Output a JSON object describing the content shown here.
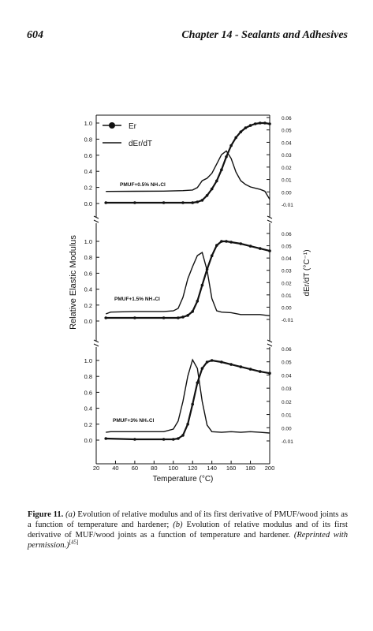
{
  "header": {
    "page_number": "604",
    "running_title": "Chapter 14 - Sealants and Adhesives"
  },
  "figure": {
    "left_axis_label": "Relative Elastic Modulus",
    "right_axis_label": "dEr/dT (°C⁻¹)",
    "x_axis_label": "Temperature (°C)",
    "legend": {
      "series_er": "Er",
      "series_der": "dEr/dT"
    }
  },
  "caption": {
    "label": "Figure 11.",
    "part_a_marker": "(a)",
    "part_a_text": "Evolution of relative modulus and of its first derivative of PMUF/wood joints as a function of temperature and hardener;",
    "part_b_marker": "(b)",
    "part_b_text": "Evolution of relative modulus and of its first derivative of MUF/wood joints as a function of temperature and hardener.",
    "reprint_note": "(Reprinted with permission.)",
    "reference": "[45]"
  },
  "chart_data": {
    "type": "line",
    "x_ticks": [
      20,
      40,
      60,
      80,
      100,
      120,
      140,
      160,
      180,
      200
    ],
    "xlim": [
      20,
      200
    ],
    "y_left_ticks": [
      "0.0",
      "0.2",
      "0.4",
      "0.6",
      "0.8",
      "1.0"
    ],
    "y_left_lim": [
      0,
      1.0
    ],
    "y_right_ticks": [
      "-0.01",
      "0.00",
      "0.01",
      "0.02",
      "0.03",
      "0.04",
      "0.05",
      "0.06"
    ],
    "y_right_lim": [
      -0.01,
      0.06
    ],
    "legend_position": "top-left",
    "panels": [
      {
        "annotation": "PMUF+0.5% NH₄Cl",
        "er": {
          "x": [
            30,
            60,
            90,
            110,
            120,
            125,
            130,
            135,
            140,
            145,
            150,
            155,
            160,
            165,
            170,
            175,
            180,
            185,
            190,
            195,
            200
          ],
          "y": [
            0.01,
            0.01,
            0.01,
            0.01,
            0.01,
            0.02,
            0.04,
            0.1,
            0.18,
            0.28,
            0.42,
            0.58,
            0.72,
            0.82,
            0.89,
            0.94,
            0.97,
            0.99,
            1.0,
            1.0,
            0.99
          ]
        },
        "der": {
          "x": [
            30,
            60,
            90,
            110,
            120,
            125,
            130,
            135,
            140,
            145,
            150,
            155,
            160,
            165,
            170,
            175,
            180,
            185,
            190,
            195,
            200
          ],
          "y": [
            0.0004,
            0.0005,
            0.0006,
            0.001,
            0.0015,
            0.0035,
            0.009,
            0.011,
            0.015,
            0.0225,
            0.03,
            0.033,
            0.027,
            0.016,
            0.009,
            0.006,
            0.004,
            0.003,
            0.002,
            0.0005,
            -0.006
          ]
        }
      },
      {
        "annotation": "PMUF+1.5% NH₄Cl",
        "er": {
          "x": [
            30,
            60,
            90,
            105,
            110,
            115,
            120,
            125,
            130,
            135,
            140,
            145,
            150,
            155,
            160,
            170,
            180,
            190,
            200
          ],
          "y": [
            0.04,
            0.04,
            0.04,
            0.04,
            0.05,
            0.07,
            0.12,
            0.25,
            0.45,
            0.65,
            0.82,
            0.95,
            1.0,
            1.0,
            0.99,
            0.97,
            0.94,
            0.91,
            0.88
          ]
        },
        "der": {
          "x": [
            30,
            35,
            60,
            90,
            100,
            105,
            110,
            115,
            120,
            125,
            130,
            135,
            140,
            145,
            150,
            160,
            170,
            180,
            190,
            200
          ],
          "y": [
            -0.0055,
            -0.004,
            -0.0035,
            -0.0035,
            -0.003,
            -0.001,
            0.008,
            0.023,
            0.033,
            0.042,
            0.0445,
            0.03,
            0.007,
            -0.003,
            -0.004,
            -0.0045,
            -0.006,
            -0.006,
            -0.006,
            -0.007
          ]
        }
      },
      {
        "annotation": "PMUF+3% NH₄Cl",
        "er": {
          "x": [
            30,
            60,
            90,
            100,
            105,
            110,
            115,
            120,
            125,
            130,
            135,
            140,
            150,
            160,
            170,
            180,
            190,
            200
          ],
          "y": [
            0.02,
            0.01,
            0.01,
            0.01,
            0.02,
            0.06,
            0.2,
            0.45,
            0.72,
            0.9,
            0.98,
            1.0,
            0.98,
            0.95,
            0.92,
            0.89,
            0.86,
            0.84
          ]
        },
        "der": {
          "x": [
            30,
            35,
            60,
            90,
            100,
            105,
            110,
            115,
            120,
            125,
            130,
            135,
            140,
            150,
            160,
            170,
            180,
            190,
            200
          ],
          "y": [
            -0.0035,
            -0.003,
            -0.003,
            -0.003,
            -0.001,
            0.005,
            0.02,
            0.039,
            0.0515,
            0.045,
            0.02,
            0.002,
            -0.003,
            -0.0035,
            -0.003,
            -0.0035,
            -0.003,
            -0.0035,
            -0.004
          ]
        }
      }
    ]
  }
}
